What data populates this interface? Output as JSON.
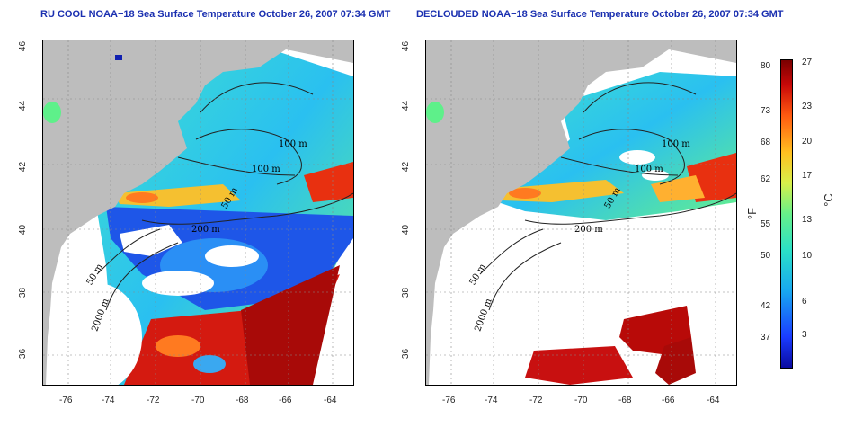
{
  "left_title": "RU COOL NOAA−18 Sea Surface Temperature October 26, 2007 07:34 GMT",
  "right_title": "DECLOUDED NOAA−18 Sea Surface Temperature October 26, 2007 07:34 GMT",
  "lat_ticks": [
    "46",
    "44",
    "42",
    "40",
    "38",
    "36"
  ],
  "lon_ticks": [
    "-76",
    "-74",
    "-72",
    "-70",
    "-68",
    "-66",
    "-64"
  ],
  "contour_labels": {
    "c100a": "100 m",
    "c100b": "100 m",
    "c50": "50 m",
    "c200": "200 m",
    "c50s": "50 m",
    "c2000": "2000 m"
  },
  "colorbar": {
    "fahrenheit_ticks": [
      "80",
      "73",
      "68",
      "62",
      "55",
      "50",
      "42",
      "37"
    ],
    "celsius_ticks": [
      "27",
      "23",
      "20",
      "17",
      "13",
      "10",
      "6",
      "3"
    ],
    "unit_f": "°F",
    "unit_c": "°C"
  },
  "colors": {
    "land": "#bdbdbd",
    "water_nodata": "#ffffff",
    "title": "#1a2fb0"
  }
}
